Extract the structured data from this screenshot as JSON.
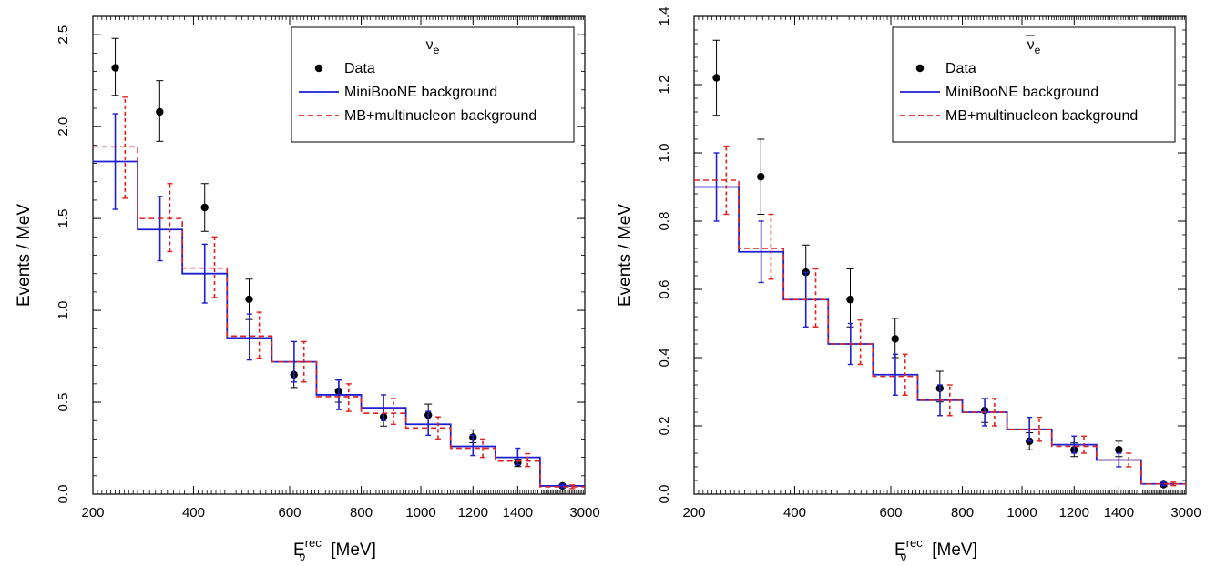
{
  "chart_data": [
    {
      "type": "line",
      "legend_title": "ν",
      "legend_title_sub": "e",
      "legend_title_bar": false,
      "legend_placement": "top-right",
      "ylabel": "Events / MeV",
      "xlabel_main": "E",
      "xlabel_sup": "rec",
      "xlabel_sub": "ν",
      "xlabel_unit": "[MeV]",
      "ylim": [
        0,
        2.6
      ],
      "yticks": [
        "0.0",
        "0.5",
        "1.0",
        "1.5",
        "2.0",
        "2.5"
      ],
      "ytick_values": [
        0,
        0.5,
        1.0,
        1.5,
        2.0,
        2.5
      ],
      "xticks": [
        "200",
        "400",
        "600",
        "800",
        "1000",
        "1200",
        "1400",
        "3000"
      ],
      "x_bin_edges": [
        200,
        300,
        375,
        475,
        550,
        675,
        800,
        950,
        1100,
        1300,
        1500,
        3000
      ],
      "series": [
        {
          "name": "Data",
          "style": "points",
          "color": "#000000",
          "points": [
            {
              "x": 250,
              "y": 2.32,
              "lo": 2.17,
              "hi": 2.48
            },
            {
              "x": 337,
              "y": 2.08,
              "lo": 1.92,
              "hi": 2.25
            },
            {
              "x": 425,
              "y": 1.56,
              "lo": 1.43,
              "hi": 1.69
            },
            {
              "x": 512,
              "y": 1.06,
              "lo": 0.95,
              "hi": 1.17
            },
            {
              "x": 612,
              "y": 0.65,
              "lo": 0.58,
              "hi": 0.72
            },
            {
              "x": 737,
              "y": 0.56,
              "lo": 0.5,
              "hi": 0.62
            },
            {
              "x": 875,
              "y": 0.42,
              "lo": 0.37,
              "hi": 0.47
            },
            {
              "x": 1025,
              "y": 0.43,
              "lo": 0.38,
              "hi": 0.49
            },
            {
              "x": 1200,
              "y": 0.31,
              "lo": 0.28,
              "hi": 0.35
            },
            {
              "x": 1400,
              "y": 0.17,
              "lo": 0.15,
              "hi": 0.19
            },
            {
              "x": 2250,
              "y": 0.045,
              "lo": 0.04,
              "hi": 0.05
            }
          ]
        },
        {
          "name": "MiniBooNE background",
          "style": "solid-step",
          "color": "#1f1fd0",
          "values": [
            1.81,
            1.44,
            1.2,
            0.85,
            0.72,
            0.54,
            0.47,
            0.38,
            0.26,
            0.2,
            0.045
          ],
          "lo": [
            1.55,
            1.27,
            1.04,
            0.73,
            0.61,
            0.46,
            0.4,
            0.32,
            0.21,
            0.16,
            0.035
          ],
          "hi": [
            2.07,
            1.62,
            1.36,
            0.98,
            0.83,
            0.62,
            0.54,
            0.45,
            0.32,
            0.25,
            0.055
          ]
        },
        {
          "name": "MB+multinucleon background",
          "style": "dashed-step",
          "color": "#e02020",
          "values": [
            1.89,
            1.5,
            1.23,
            0.86,
            0.72,
            0.53,
            0.44,
            0.36,
            0.25,
            0.18,
            0.04
          ],
          "lo": [
            1.61,
            1.32,
            1.07,
            0.74,
            0.61,
            0.45,
            0.38,
            0.3,
            0.2,
            0.15,
            0.03
          ],
          "hi": [
            2.16,
            1.69,
            1.4,
            0.99,
            0.83,
            0.6,
            0.52,
            0.42,
            0.3,
            0.22,
            0.05
          ]
        }
      ]
    },
    {
      "type": "line",
      "legend_title": "ν",
      "legend_title_sub": "e",
      "legend_title_bar": true,
      "legend_placement": "top-right",
      "ylabel": "Events / MeV",
      "xlabel_main": "E",
      "xlabel_sup": "rec",
      "xlabel_sub": "ν",
      "xlabel_unit": "[MeV]",
      "ylim": [
        0,
        1.4
      ],
      "yticks": [
        "0.0",
        "0.2",
        "0.4",
        "0.6",
        "0.8",
        "1.0",
        "1.2",
        "1.4"
      ],
      "ytick_values": [
        0,
        0.2,
        0.4,
        0.6,
        0.8,
        1.0,
        1.2,
        1.4
      ],
      "xticks": [
        "200",
        "400",
        "600",
        "800",
        "1000",
        "1200",
        "1400",
        "3000"
      ],
      "x_bin_edges": [
        200,
        300,
        375,
        475,
        550,
        675,
        800,
        950,
        1100,
        1300,
        1500,
        3000
      ],
      "series": [
        {
          "name": "Data",
          "style": "points",
          "color": "#000000",
          "points": [
            {
              "x": 250,
              "y": 1.22,
              "lo": 1.11,
              "hi": 1.33
            },
            {
              "x": 337,
              "y": 0.93,
              "lo": 0.82,
              "hi": 1.04
            },
            {
              "x": 425,
              "y": 0.65,
              "lo": 0.57,
              "hi": 0.73
            },
            {
              "x": 512,
              "y": 0.57,
              "lo": 0.49,
              "hi": 0.66
            },
            {
              "x": 612,
              "y": 0.455,
              "lo": 0.4,
              "hi": 0.515
            },
            {
              "x": 737,
              "y": 0.31,
              "lo": 0.27,
              "hi": 0.36
            },
            {
              "x": 875,
              "y": 0.245,
              "lo": 0.21,
              "hi": 0.28
            },
            {
              "x": 1025,
              "y": 0.155,
              "lo": 0.13,
              "hi": 0.18
            },
            {
              "x": 1200,
              "y": 0.13,
              "lo": 0.11,
              "hi": 0.15
            },
            {
              "x": 1400,
              "y": 0.13,
              "lo": 0.11,
              "hi": 0.155
            },
            {
              "x": 2250,
              "y": 0.028,
              "lo": 0.022,
              "hi": 0.034
            }
          ]
        },
        {
          "name": "MiniBooNE background",
          "style": "solid-step",
          "color": "#1f1fd0",
          "values": [
            0.9,
            0.71,
            0.57,
            0.44,
            0.35,
            0.275,
            0.24,
            0.19,
            0.145,
            0.1,
            0.03
          ],
          "lo": [
            0.8,
            0.62,
            0.49,
            0.38,
            0.29,
            0.23,
            0.2,
            0.155,
            0.12,
            0.08,
            0.025
          ],
          "hi": [
            1.0,
            0.8,
            0.65,
            0.5,
            0.41,
            0.32,
            0.28,
            0.225,
            0.17,
            0.12,
            0.035
          ]
        },
        {
          "name": "MB+multinucleon background",
          "style": "dashed-step",
          "color": "#e02020",
          "values": [
            0.92,
            0.72,
            0.57,
            0.44,
            0.345,
            0.275,
            0.24,
            0.19,
            0.14,
            0.1,
            0.03
          ],
          "lo": [
            0.82,
            0.63,
            0.49,
            0.38,
            0.29,
            0.23,
            0.2,
            0.155,
            0.12,
            0.08,
            0.025
          ],
          "hi": [
            1.02,
            0.82,
            0.66,
            0.51,
            0.41,
            0.32,
            0.28,
            0.225,
            0.17,
            0.12,
            0.035
          ]
        }
      ]
    }
  ]
}
